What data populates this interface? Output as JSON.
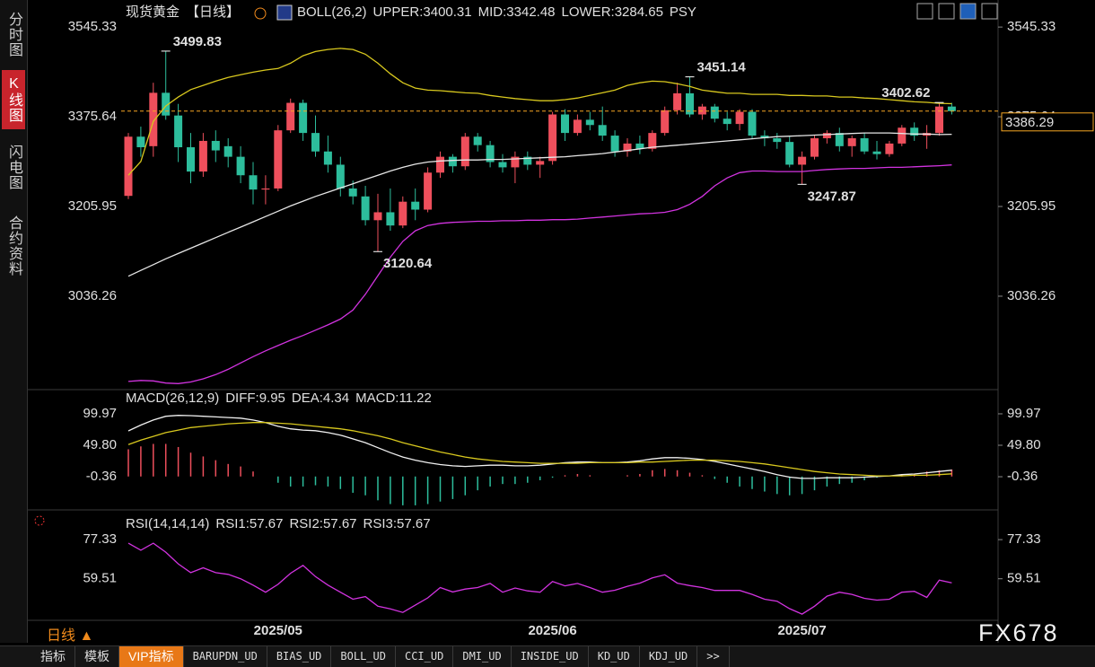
{
  "ui": {
    "sidebar": [
      "分时图",
      "K线图",
      "闪电图",
      "合约资料"
    ],
    "sidebar_active": 1,
    "period": "日线 ▲",
    "toolbar": [
      "指标",
      "模板",
      "VIP指标",
      "BARUPDN_UD",
      "BIAS_UD",
      "BOLL_UD",
      "CCI_UD",
      "DMI_UD",
      "INSIDE_UD",
      "KD_UD",
      "KDJ_UD",
      ">>"
    ],
    "toolbar_active": 2,
    "watermark": "FX678"
  },
  "chart_data": [
    {
      "type": "candlestick",
      "title": "现货黄金",
      "period_tag": "【日线】",
      "indicator": "BOLL(26,2)",
      "extra_label": "PSY",
      "up_color": "#ee4f5c",
      "down_color": "#2dbd9c",
      "categories": [
        null,
        null,
        null,
        null,
        null,
        null,
        null,
        null,
        null,
        null,
        null,
        null,
        "2025/05",
        null,
        null,
        null,
        null,
        null,
        null,
        null,
        null,
        null,
        null,
        null,
        null,
        null,
        null,
        null,
        null,
        null,
        null,
        null,
        null,
        null,
        "2025/06",
        null,
        null,
        null,
        null,
        null,
        null,
        null,
        null,
        null,
        null,
        null,
        null,
        null,
        null,
        null,
        null,
        null,
        null,
        null,
        "2025/07",
        null,
        null,
        null,
        null,
        null,
        null,
        null,
        null,
        null,
        null,
        null,
        null
      ],
      "open": [
        3226,
        3338,
        3320,
        3421,
        3378,
        3318,
        3272,
        3330,
        3320,
        3300,
        3265,
        3238,
        3240,
        3350,
        3402,
        3345,
        3310,
        3285,
        3240,
        3225,
        3180,
        3195,
        3170,
        3215,
        3200,
        3270,
        3300,
        3282,
        3338,
        3322,
        3290,
        3280,
        3300,
        3285,
        3292,
        3380,
        3345,
        3370,
        3360,
        3340,
        3310,
        3325,
        3315,
        3345,
        3388,
        3420,
        3380,
        3395,
        3372,
        3362,
        3385,
        3340,
        3335,
        3328,
        3285,
        3300,
        3335,
        3345,
        3320,
        3335,
        3310,
        3305,
        3325,
        3355,
        3340,
        3345,
        3395
      ],
      "high": [
        3345,
        3357,
        3440,
        3499.83,
        3400,
        3345,
        3345,
        3350,
        3335,
        3320,
        3290,
        3265,
        3360,
        3410,
        3408,
        3378,
        3340,
        3300,
        3255,
        3245,
        3230,
        3240,
        3225,
        3240,
        3280,
        3310,
        3305,
        3345,
        3345,
        3330,
        3305,
        3310,
        3310,
        3300,
        3385,
        3390,
        3380,
        3385,
        3395,
        3350,
        3335,
        3340,
        3350,
        3395,
        3440,
        3451.14,
        3400,
        3400,
        3385,
        3390,
        3390,
        3350,
        3345,
        3338,
        3310,
        3340,
        3350,
        3355,
        3340,
        3345,
        3330,
        3330,
        3360,
        3365,
        3360,
        3402.62,
        3402
      ],
      "low": [
        3220,
        3300,
        3300,
        3370,
        3290,
        3250,
        3262,
        3290,
        3280,
        3250,
        3210,
        3210,
        3235,
        3345,
        3330,
        3300,
        3270,
        3225,
        3210,
        3170,
        3120.64,
        3160,
        3165,
        3180,
        3195,
        3260,
        3270,
        3275,
        3310,
        3280,
        3270,
        3250,
        3275,
        3260,
        3285,
        3330,
        3340,
        3350,
        3330,
        3300,
        3300,
        3305,
        3310,
        3340,
        3380,
        3375,
        3370,
        3365,
        3350,
        3350,
        3335,
        3320,
        3315,
        3280,
        3247.87,
        3295,
        3325,
        3310,
        3300,
        3305,
        3295,
        3300,
        3320,
        3330,
        3315,
        3340,
        3380
      ],
      "close": [
        3338,
        3318,
        3421,
        3378,
        3318,
        3272,
        3330,
        3312,
        3300,
        3265,
        3238,
        3240,
        3350,
        3402,
        3345,
        3310,
        3285,
        3240,
        3225,
        3180,
        3195,
        3170,
        3215,
        3200,
        3270,
        3300,
        3282,
        3338,
        3322,
        3290,
        3280,
        3300,
        3285,
        3292,
        3380,
        3345,
        3370,
        3360,
        3340,
        3310,
        3325,
        3315,
        3345,
        3388,
        3420,
        3380,
        3395,
        3372,
        3362,
        3385,
        3340,
        3335,
        3328,
        3285,
        3300,
        3335,
        3345,
        3320,
        3335,
        3310,
        3305,
        3325,
        3355,
        3340,
        3345,
        3395,
        3386.29
      ],
      "series": [
        {
          "name": "UPPER:3400.31",
          "color": "#d8c81e",
          "values": [
            3265,
            3291,
            3367,
            3396,
            3413,
            3427,
            3435,
            3443,
            3450,
            3455,
            3460,
            3464,
            3467,
            3477,
            3491,
            3499,
            3503,
            3505,
            3503,
            3494,
            3477,
            3457,
            3440,
            3430,
            3426,
            3425,
            3423,
            3421,
            3420,
            3416,
            3413,
            3410,
            3408,
            3406,
            3406,
            3408,
            3411,
            3416,
            3421,
            3426,
            3435,
            3440,
            3443,
            3442,
            3438,
            3433,
            3426,
            3423,
            3420,
            3420,
            3418,
            3418,
            3418,
            3416,
            3416,
            3415,
            3415,
            3413,
            3413,
            3411,
            3410,
            3408,
            3406,
            3404,
            3403,
            3401,
            3400.31
          ]
        },
        {
          "name": "MID:3342.48",
          "color": "#e6e6e6",
          "values": [
            3074,
            3085,
            3096,
            3107,
            3117,
            3127,
            3137,
            3147,
            3157,
            3167,
            3177,
            3187,
            3197,
            3207,
            3216,
            3225,
            3233,
            3241,
            3249,
            3257,
            3265,
            3273,
            3280,
            3286,
            3290,
            3292,
            3293,
            3294,
            3294,
            3295,
            3295,
            3296,
            3297,
            3298,
            3299,
            3300,
            3302,
            3304,
            3306,
            3309,
            3312,
            3315,
            3318,
            3320,
            3322,
            3324,
            3326,
            3328,
            3330,
            3332,
            3334,
            3336,
            3338,
            3339,
            3340,
            3341,
            3342,
            3343,
            3344,
            3345,
            3345,
            3345,
            3344,
            3343,
            3343,
            3342,
            3342.48
          ]
        },
        {
          "name": "LOWER:3284.65",
          "color": "#d233e0",
          "values": [
            2875,
            2877,
            2876,
            2872,
            2871,
            2874,
            2880,
            2888,
            2898,
            2910,
            2922,
            2933,
            2943,
            2953,
            2962,
            2972,
            2982,
            2993,
            3010,
            3040,
            3075,
            3110,
            3140,
            3160,
            3170,
            3174,
            3176,
            3177,
            3178,
            3178,
            3179,
            3179,
            3180,
            3180,
            3181,
            3181,
            3182,
            3184,
            3186,
            3188,
            3190,
            3192,
            3193,
            3195,
            3200,
            3210,
            3225,
            3245,
            3260,
            3270,
            3273,
            3273,
            3272,
            3272,
            3272,
            3274,
            3276,
            3277,
            3278,
            3278,
            3279,
            3280,
            3280,
            3281,
            3282,
            3283,
            3284.65
          ]
        }
      ],
      "ylim": [
        2863,
        3588
      ],
      "yticks": [
        3545.33,
        3375.64,
        3205.95,
        3036.26
      ],
      "marked_highs": [
        3,
        45,
        65
      ],
      "marked_lows": [
        20,
        54
      ],
      "last_price_line": true,
      "last_price_color": "#f5a623"
    },
    {
      "type": "macd",
      "indicator": "MACD(26,12,9)",
      "series": [
        {
          "name": "DIFF:9.95",
          "color": "#f0f0f0",
          "values": [
            72.7,
            82,
            90,
            96,
            97.5,
            97,
            96,
            95,
            94,
            93,
            90,
            86,
            80,
            76,
            74,
            73,
            70,
            66,
            60,
            54,
            46,
            38,
            31,
            26,
            22,
            19,
            17,
            16,
            17,
            18,
            18,
            17,
            17,
            18,
            20,
            22,
            23,
            23,
            22,
            22,
            23,
            25,
            28,
            30,
            30,
            29,
            27,
            24,
            20,
            16,
            12,
            8,
            3,
            -1,
            -3,
            -3,
            -2,
            -2,
            -2,
            -1,
            0,
            1,
            3,
            4,
            6,
            8,
            9.95
          ]
        },
        {
          "name": "DEA:4.34",
          "color": "#d8c81e",
          "values": [
            51,
            58,
            64,
            70,
            74,
            78,
            80,
            82,
            84,
            85,
            86,
            86,
            85,
            84,
            82,
            80,
            78,
            76,
            73,
            69,
            65,
            60,
            54,
            49,
            44,
            39,
            35,
            31,
            28,
            26,
            24,
            23,
            22,
            21,
            21,
            21,
            21,
            22,
            22,
            22,
            22,
            23,
            23,
            24,
            25,
            26,
            26,
            26,
            25,
            24,
            22,
            20,
            17,
            14,
            11,
            8,
            6,
            4,
            3,
            2,
            1,
            1,
            1,
            2,
            2,
            3,
            4.34
          ]
        }
      ],
      "histogram": {
        "name": "MACD:11.22",
        "color": "#d233e0",
        "up_color": "#ee4f5c",
        "down_color": "#2dbd9c",
        "values": [
          43.4,
          48,
          52,
          52,
          47,
          38,
          32,
          26,
          20,
          16,
          8,
          0,
          -10,
          -16,
          -16,
          -14,
          -16,
          -20,
          -26,
          -30,
          -38,
          -44,
          -46,
          -46,
          -44,
          -40,
          -36,
          -30,
          -22,
          -16,
          -12,
          -12,
          -10,
          -6,
          -2,
          2,
          4,
          2,
          0,
          0,
          2,
          4,
          10,
          12,
          10,
          6,
          2,
          -4,
          -10,
          -16,
          -20,
          -24,
          -28,
          -30,
          -28,
          -22,
          -16,
          -12,
          -10,
          -6,
          -2,
          0,
          4,
          4,
          8,
          10,
          11.22
        ]
      },
      "ylim": [
        -49,
        130
      ],
      "yticks": [
        99.97,
        {
          "value": 49.8,
          "label": "49.80"
        },
        -0.36
      ]
    },
    {
      "type": "rsi",
      "indicator": "RSI(14,14,14)",
      "legend": [
        {
          "text": "RSI1:57.67",
          "color": "#f0f0f0"
        },
        {
          "text": "RSI2:57.67",
          "color": "#d8c81e"
        },
        {
          "text": "RSI3:57.67",
          "color": "#d233e0"
        }
      ],
      "color": "#d233e0",
      "values": [
        75.7,
        72.5,
        75.7,
        71.6,
        66.3,
        62.3,
        64.5,
        62.3,
        61.5,
        59.5,
        56.6,
        53.4,
        57.0,
        62.0,
        65.6,
        60.5,
        56.6,
        53.4,
        50.2,
        51.4,
        47.0,
        45.8,
        44.2,
        47.5,
        50.8,
        55.5,
        53.5,
        54.8,
        55.5,
        57.4,
        53.4,
        55.3,
        54.0,
        53.4,
        58.3,
        56.3,
        57.4,
        55.5,
        53.4,
        54.3,
        56.1,
        57.5,
        59.9,
        61.3,
        57.5,
        56.4,
        55.5,
        54.2,
        54.2,
        54.2,
        52.4,
        50.2,
        49.3,
        45.9,
        43.4,
        47.0,
        51.6,
        53.4,
        52.4,
        50.6,
        49.8,
        50.2,
        53.4,
        53.8,
        51.0,
        58.9,
        57.67
      ],
      "ylim": [
        41,
        88
      ],
      "yticks": [
        77.33,
        59.51
      ]
    }
  ]
}
